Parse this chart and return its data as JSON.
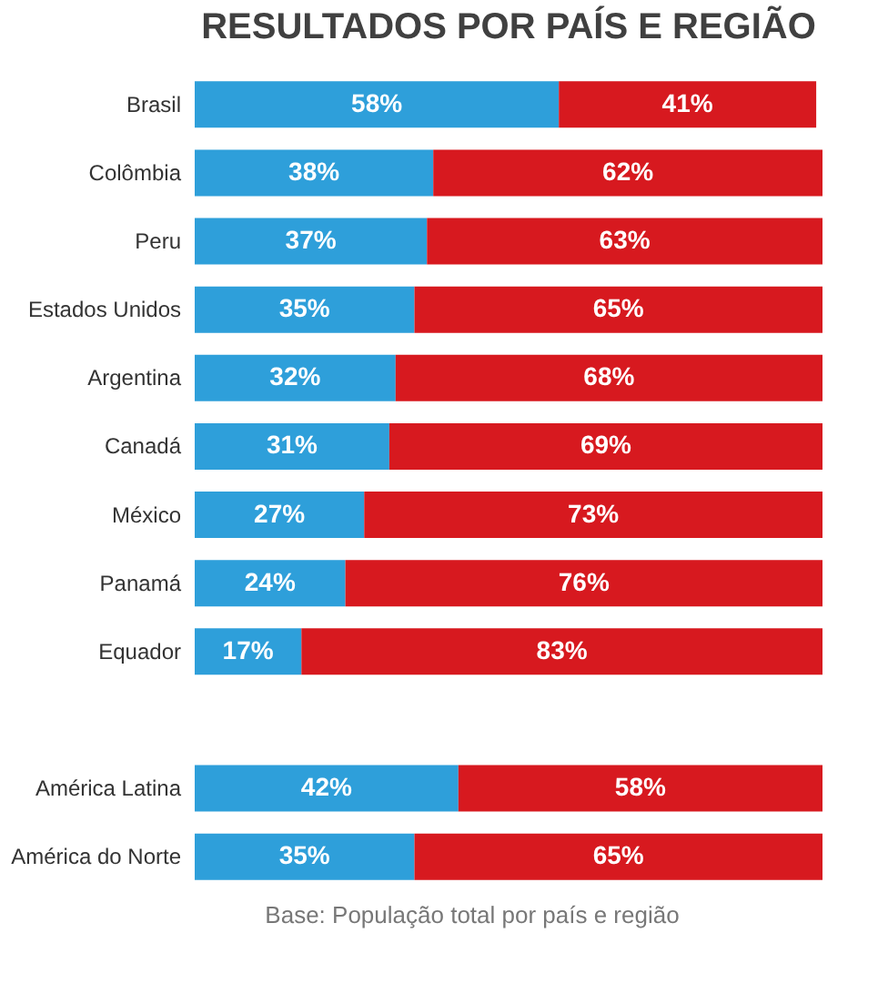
{
  "chart_data": {
    "type": "bar",
    "orientation": "horizontal",
    "stacked": true,
    "title": "RESULTADOS POR PAÍS E REGIÃO",
    "categories": [
      "Brasil",
      "Colômbia",
      "Peru",
      "Estados Unidos",
      "Argentina",
      "Canadá",
      "México",
      "Panamá",
      "Equador",
      null,
      "América Latina",
      "América do Norte"
    ],
    "series": [
      {
        "color": "#2e9fda",
        "values": [
          58,
          38,
          37,
          35,
          32,
          31,
          27,
          24,
          17,
          null,
          42,
          35
        ],
        "value_labels": [
          "58%",
          "38%",
          "37%",
          "35%",
          "32%",
          "31%",
          "27%",
          "24%",
          "17%",
          null,
          "42%",
          "35%"
        ]
      },
      {
        "color": "#d7191f",
        "values": [
          41,
          62,
          63,
          65,
          68,
          69,
          73,
          76,
          83,
          null,
          58,
          65
        ],
        "value_labels": [
          "41%",
          "62%",
          "63%",
          "65%",
          "68%",
          "69%",
          "73%",
          "76%",
          "83%",
          null,
          "58%",
          "65%"
        ]
      }
    ],
    "annotations": [
      "Base: População total por país e região"
    ],
    "grid": false,
    "legend": false
  }
}
